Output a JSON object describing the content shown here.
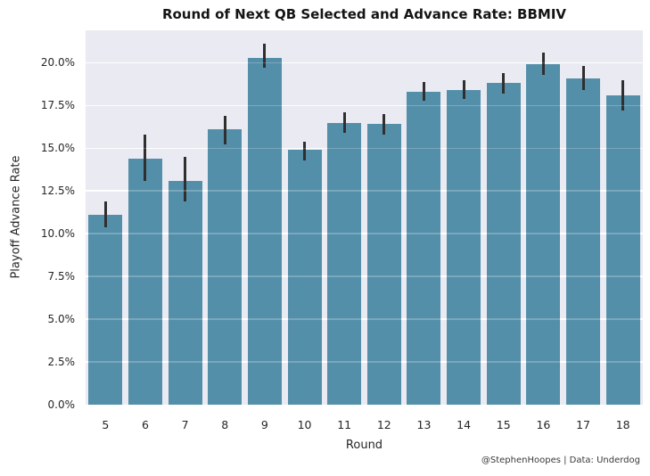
{
  "title": "Round of Next QB Selected and Advance Rate: BBMIV",
  "credit": "@StephenHoopes | Data: Underdog",
  "colors": {
    "bar": "#548faa",
    "plot_background": "#eaeaf2",
    "gridline": "#ffffff",
    "error_bar": "#2f2f2f",
    "text": "#262626",
    "title_text": "#141414"
  },
  "chart_data": {
    "type": "bar",
    "title": "Round of Next QB Selected and Advance Rate: BBMIV",
    "xlabel": "Round",
    "ylabel": "Playoff Advance Rate",
    "categories": [
      "5",
      "6",
      "7",
      "8",
      "9",
      "10",
      "11",
      "12",
      "13",
      "14",
      "15",
      "16",
      "17",
      "18"
    ],
    "values": [
      11.1,
      14.4,
      13.1,
      16.1,
      20.3,
      14.9,
      16.5,
      16.4,
      18.3,
      18.4,
      18.8,
      19.9,
      19.1,
      18.1
    ],
    "error_low": [
      10.4,
      13.1,
      11.9,
      15.2,
      19.7,
      14.3,
      15.9,
      15.8,
      17.8,
      17.9,
      18.2,
      19.3,
      18.4,
      17.2
    ],
    "error_high": [
      11.9,
      15.8,
      14.5,
      16.9,
      21.1,
      15.4,
      17.1,
      17.0,
      18.9,
      19.0,
      19.4,
      20.6,
      19.8,
      19.0
    ],
    "value_unit": "%",
    "ylim": [
      0,
      21.9
    ],
    "ytick_values": [
      0,
      2.5,
      5,
      7.5,
      10,
      12.5,
      15,
      17.5,
      20
    ],
    "ytick_labels": [
      "0.0%",
      "2.5%",
      "5.0%",
      "7.5%",
      "10.0%",
      "12.5%",
      "15.0%",
      "17.5%",
      "20.0%"
    ],
    "grid": true,
    "legend": "none"
  }
}
